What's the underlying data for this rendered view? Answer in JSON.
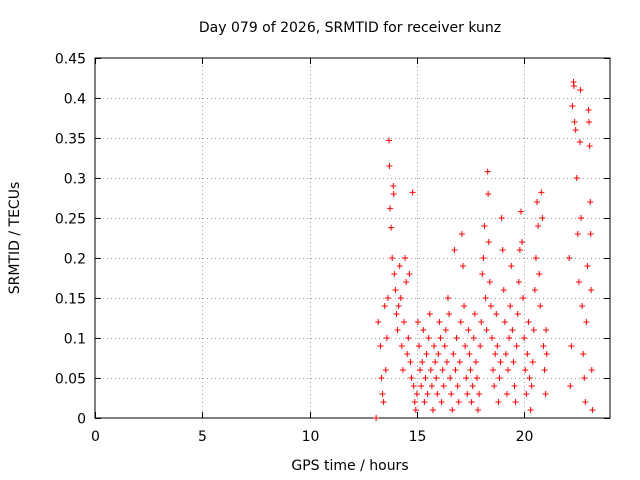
{
  "chart_data": {
    "type": "scatter",
    "title": "Day 079 of 2026, SRMTID for receiver kunz",
    "xlabel": "GPS time / hours",
    "ylabel": "SRMTID / TECUs",
    "xlim": [
      0,
      24
    ],
    "ylim": [
      0,
      0.45
    ],
    "xticks": [
      0,
      5,
      10,
      15,
      20
    ],
    "xtick_labels": [
      "0",
      "5",
      "10",
      "15",
      "20"
    ],
    "yticks": [
      0,
      0.05,
      0.1,
      0.15,
      0.2,
      0.25,
      0.3,
      0.35,
      0.4,
      0.45
    ],
    "ytick_labels": [
      "0",
      "0.05",
      "0.1",
      "0.15",
      "0.2",
      "0.25",
      "0.3",
      "0.35",
      "0.4",
      "0.45"
    ],
    "grid": true,
    "marker": "plus",
    "series": [
      {
        "name": "SRMTID",
        "color": "#ff0000",
        "points": [
          [
            13.1,
            0.0
          ],
          [
            13.2,
            0.12
          ],
          [
            13.3,
            0.09
          ],
          [
            13.35,
            0.05
          ],
          [
            13.4,
            0.03
          ],
          [
            13.45,
            0.02
          ],
          [
            13.5,
            0.14
          ],
          [
            13.55,
            0.06
          ],
          [
            13.6,
            0.1
          ],
          [
            13.65,
            0.15
          ],
          [
            13.7,
            0.347
          ],
          [
            13.72,
            0.315
          ],
          [
            13.75,
            0.262
          ],
          [
            13.8,
            0.238
          ],
          [
            13.85,
            0.2
          ],
          [
            13.9,
            0.29
          ],
          [
            13.92,
            0.28
          ],
          [
            13.95,
            0.18
          ],
          [
            14.0,
            0.16
          ],
          [
            14.05,
            0.13
          ],
          [
            14.1,
            0.11
          ],
          [
            14.15,
            0.14
          ],
          [
            14.2,
            0.19
          ],
          [
            14.25,
            0.15
          ],
          [
            14.3,
            0.09
          ],
          [
            14.35,
            0.06
          ],
          [
            14.4,
            0.12
          ],
          [
            14.45,
            0.2
          ],
          [
            14.5,
            0.17
          ],
          [
            14.55,
            0.08
          ],
          [
            14.6,
            0.1
          ],
          [
            14.65,
            0.18
          ],
          [
            14.7,
            0.07
          ],
          [
            14.75,
            0.05
          ],
          [
            14.8,
            0.282
          ],
          [
            14.85,
            0.04
          ],
          [
            14.9,
            0.02
          ],
          [
            14.95,
            0.01
          ],
          [
            15.0,
            0.03
          ],
          [
            15.05,
            0.12
          ],
          [
            15.1,
            0.09
          ],
          [
            15.15,
            0.06
          ],
          [
            15.2,
            0.04
          ],
          [
            15.25,
            0.07
          ],
          [
            15.3,
            0.11
          ],
          [
            15.35,
            0.02
          ],
          [
            15.4,
            0.05
          ],
          [
            15.45,
            0.08
          ],
          [
            15.5,
            0.03
          ],
          [
            15.55,
            0.1
          ],
          [
            15.6,
            0.13
          ],
          [
            15.65,
            0.06
          ],
          [
            15.7,
            0.04
          ],
          [
            15.75,
            0.01
          ],
          [
            15.8,
            0.09
          ],
          [
            15.85,
            0.07
          ],
          [
            15.9,
            0.05
          ],
          [
            15.95,
            0.03
          ],
          [
            16.0,
            0.08
          ],
          [
            16.05,
            0.12
          ],
          [
            16.1,
            0.1
          ],
          [
            16.15,
            0.02
          ],
          [
            16.2,
            0.06
          ],
          [
            16.25,
            0.04
          ],
          [
            16.3,
            0.09
          ],
          [
            16.35,
            0.11
          ],
          [
            16.4,
            0.07
          ],
          [
            16.45,
            0.15
          ],
          [
            16.5,
            0.13
          ],
          [
            16.55,
            0.05
          ],
          [
            16.6,
            0.03
          ],
          [
            16.65,
            0.01
          ],
          [
            16.7,
            0.08
          ],
          [
            16.75,
            0.21
          ],
          [
            16.8,
            0.06
          ],
          [
            16.85,
            0.1
          ],
          [
            16.9,
            0.04
          ],
          [
            16.95,
            0.02
          ],
          [
            17.0,
            0.07
          ],
          [
            17.05,
            0.12
          ],
          [
            17.1,
            0.23
          ],
          [
            17.15,
            0.19
          ],
          [
            17.2,
            0.14
          ],
          [
            17.25,
            0.09
          ],
          [
            17.3,
            0.05
          ],
          [
            17.35,
            0.03
          ],
          [
            17.4,
            0.11
          ],
          [
            17.45,
            0.08
          ],
          [
            17.5,
            0.06
          ],
          [
            17.55,
            0.02
          ],
          [
            17.6,
            0.04
          ],
          [
            17.65,
            0.1
          ],
          [
            17.7,
            0.13
          ],
          [
            17.75,
            0.07
          ],
          [
            17.8,
            0.05
          ],
          [
            17.85,
            0.01
          ],
          [
            17.9,
            0.03
          ],
          [
            17.95,
            0.09
          ],
          [
            18.0,
            0.12
          ],
          [
            18.05,
            0.18
          ],
          [
            18.1,
            0.2
          ],
          [
            18.15,
            0.24
          ],
          [
            18.2,
            0.15
          ],
          [
            18.25,
            0.11
          ],
          [
            18.3,
            0.308
          ],
          [
            18.32,
            0.28
          ],
          [
            18.35,
            0.22
          ],
          [
            18.4,
            0.17
          ],
          [
            18.45,
            0.14
          ],
          [
            18.5,
            0.1
          ],
          [
            18.55,
            0.06
          ],
          [
            18.6,
            0.04
          ],
          [
            18.65,
            0.08
          ],
          [
            18.7,
            0.13
          ],
          [
            18.75,
            0.09
          ],
          [
            18.8,
            0.02
          ],
          [
            18.85,
            0.05
          ],
          [
            18.9,
            0.07
          ],
          [
            18.95,
            0.25
          ],
          [
            19.0,
            0.21
          ],
          [
            19.05,
            0.16
          ],
          [
            19.1,
            0.12
          ],
          [
            19.15,
            0.08
          ],
          [
            19.2,
            0.03
          ],
          [
            19.25,
            0.06
          ],
          [
            19.3,
            0.1
          ],
          [
            19.35,
            0.14
          ],
          [
            19.4,
            0.19
          ],
          [
            19.45,
            0.11
          ],
          [
            19.5,
            0.07
          ],
          [
            19.55,
            0.04
          ],
          [
            19.6,
            0.02
          ],
          [
            19.65,
            0.09
          ],
          [
            19.7,
            0.13
          ],
          [
            19.75,
            0.17
          ],
          [
            19.8,
            0.21
          ],
          [
            19.85,
            0.258
          ],
          [
            19.9,
            0.22
          ],
          [
            19.95,
            0.15
          ],
          [
            20.0,
            0.1
          ],
          [
            20.05,
            0.06
          ],
          [
            20.1,
            0.03
          ],
          [
            20.15,
            0.08
          ],
          [
            20.2,
            0.12
          ],
          [
            20.25,
            0.05
          ],
          [
            20.3,
            0.01
          ],
          [
            20.35,
            0.04
          ],
          [
            20.4,
            0.07
          ],
          [
            20.45,
            0.11
          ],
          [
            20.5,
            0.16
          ],
          [
            20.55,
            0.2
          ],
          [
            20.6,
            0.27
          ],
          [
            20.65,
            0.24
          ],
          [
            20.7,
            0.18
          ],
          [
            20.75,
            0.14
          ],
          [
            20.8,
            0.282
          ],
          [
            20.85,
            0.25
          ],
          [
            20.9,
            0.09
          ],
          [
            20.95,
            0.06
          ],
          [
            21.0,
            0.03
          ],
          [
            21.02,
            0.11
          ],
          [
            21.05,
            0.08
          ],
          [
            22.1,
            0.2
          ],
          [
            22.15,
            0.04
          ],
          [
            22.2,
            0.09
          ],
          [
            22.25,
            0.39
          ],
          [
            22.3,
            0.42
          ],
          [
            22.32,
            0.415
          ],
          [
            22.35,
            0.37
          ],
          [
            22.4,
            0.36
          ],
          [
            22.45,
            0.3
          ],
          [
            22.5,
            0.23
          ],
          [
            22.55,
            0.17
          ],
          [
            22.6,
            0.345
          ],
          [
            22.62,
            0.41
          ],
          [
            22.65,
            0.25
          ],
          [
            22.7,
            0.14
          ],
          [
            22.75,
            0.08
          ],
          [
            22.8,
            0.05
          ],
          [
            22.85,
            0.02
          ],
          [
            22.9,
            0.12
          ],
          [
            22.95,
            0.19
          ],
          [
            23.0,
            0.385
          ],
          [
            23.02,
            0.37
          ],
          [
            23.05,
            0.34
          ],
          [
            23.08,
            0.27
          ],
          [
            23.1,
            0.23
          ],
          [
            23.12,
            0.16
          ],
          [
            23.15,
            0.06
          ],
          [
            23.18,
            0.01
          ]
        ]
      }
    ]
  }
}
